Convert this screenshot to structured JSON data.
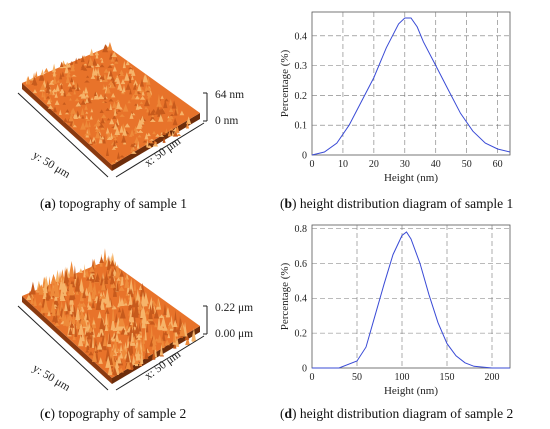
{
  "panels": [
    {
      "id": "a",
      "kind": "topography",
      "caption_letter": "a",
      "caption_text": " topography of sample 1",
      "z_top": "64 nm",
      "z_bottom": "0 nm",
      "y_axis": "y: 50 μm",
      "x_axis": "x: 50 μm",
      "surface_color": "#e8732a",
      "roughness": "low"
    },
    {
      "id": "b",
      "kind": "distribution",
      "caption_letter": "b",
      "caption_text": " height distribution diagram of sample 1"
    },
    {
      "id": "c",
      "kind": "topography",
      "caption_letter": "c",
      "caption_text": " topography of sample 2",
      "z_top": "0.22 μm",
      "z_bottom": "0.00 μm",
      "y_axis": "y: 50 μm",
      "x_axis": "x: 50 μm",
      "surface_color": "#e8732a",
      "roughness": "high"
    },
    {
      "id": "d",
      "kind": "distribution",
      "caption_letter": "d",
      "caption_text": " height distribution diagram of sample 2"
    }
  ],
  "chart_data": [
    {
      "type": "line",
      "panel": "b",
      "xlabel": "Height (nm)",
      "ylabel": "Percentage (%)",
      "xlim": [
        0,
        64
      ],
      "ylim": [
        0,
        0.48
      ],
      "xticks": [
        0,
        10,
        20,
        30,
        40,
        50,
        60
      ],
      "yticks": [
        0,
        0.1,
        0.2,
        0.3,
        0.4
      ],
      "grid": true,
      "line_color": "#3a4bd6",
      "series": [
        {
          "x": [
            0,
            4,
            8,
            12,
            16,
            20,
            24,
            28,
            30,
            32,
            34,
            36,
            40,
            44,
            48,
            52,
            56,
            60,
            64
          ],
          "y": [
            0.0,
            0.01,
            0.04,
            0.1,
            0.18,
            0.26,
            0.36,
            0.44,
            0.46,
            0.46,
            0.43,
            0.38,
            0.3,
            0.22,
            0.14,
            0.08,
            0.04,
            0.02,
            0.01
          ]
        }
      ]
    },
    {
      "type": "line",
      "panel": "d",
      "xlabel": "Height (nm)",
      "ylabel": "Percentage (%)",
      "xlim": [
        0,
        220
      ],
      "ylim": [
        0,
        0.82
      ],
      "xticks": [
        0,
        50,
        100,
        150,
        200
      ],
      "yticks": [
        0,
        0.2,
        0.4,
        0.6,
        0.8
      ],
      "grid": true,
      "line_color": "#3a4bd6",
      "series": [
        {
          "x": [
            0,
            30,
            50,
            60,
            70,
            80,
            90,
            100,
            105,
            110,
            120,
            130,
            140,
            150,
            160,
            170,
            180,
            200,
            220
          ],
          "y": [
            0.0,
            0.0,
            0.04,
            0.12,
            0.3,
            0.48,
            0.65,
            0.76,
            0.78,
            0.74,
            0.6,
            0.42,
            0.26,
            0.14,
            0.07,
            0.03,
            0.01,
            0.0,
            0.0
          ]
        }
      ]
    }
  ]
}
